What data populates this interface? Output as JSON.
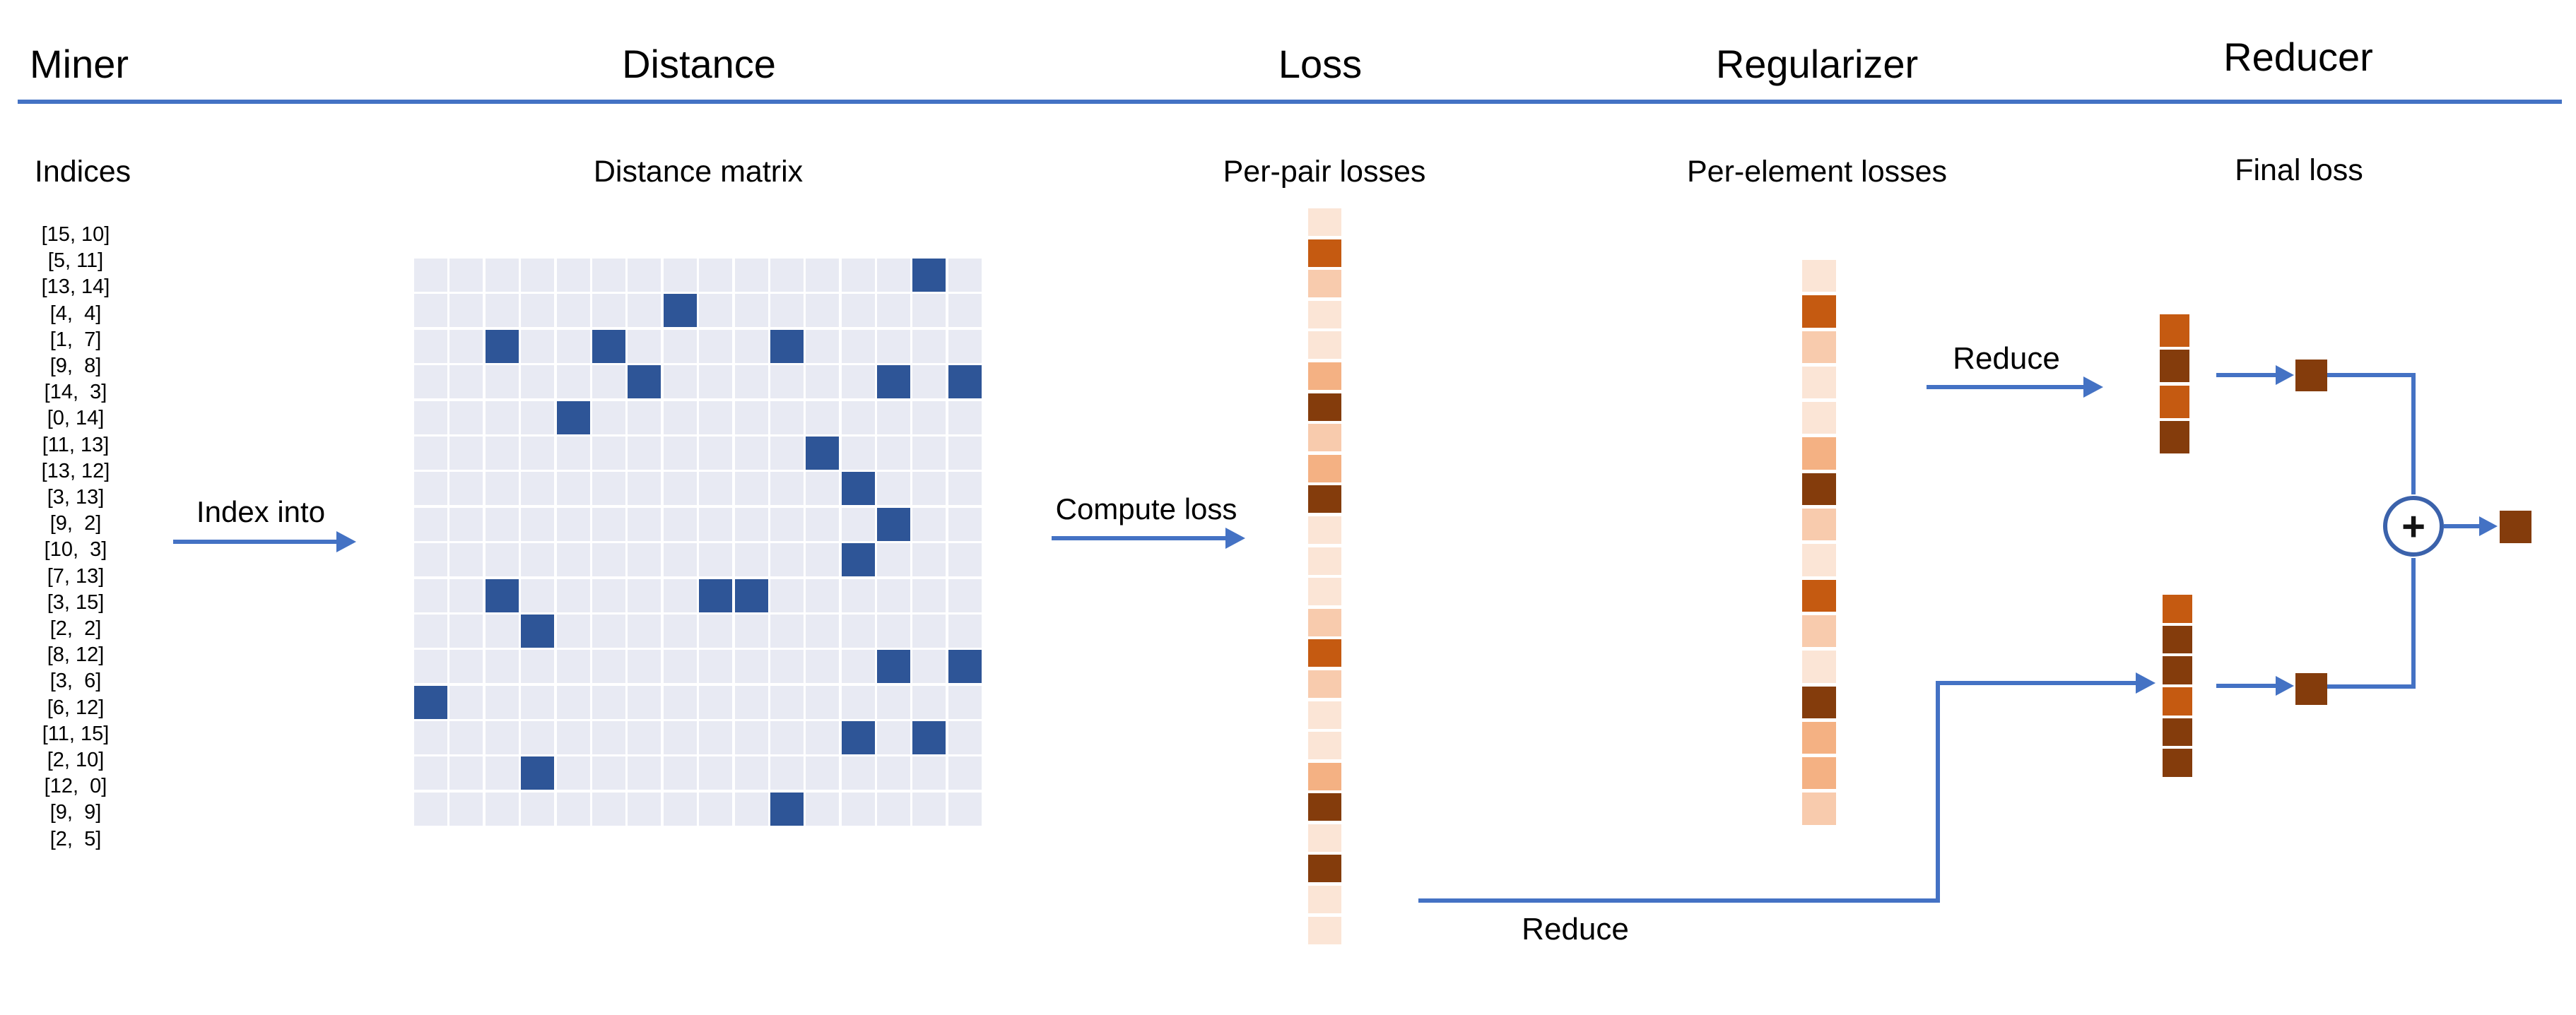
{
  "diagram": {
    "headers": {
      "miner": "Miner",
      "distance": "Distance",
      "loss": "Loss",
      "regularizer": "Regularizer",
      "reducer": "Reducer"
    },
    "subtitles": {
      "indices": "Indices",
      "distance_matrix": "Distance matrix",
      "per_pair": "Per-pair losses",
      "per_element": "Per-element losses",
      "final_loss": "Final loss"
    },
    "labels": {
      "index_into": "Index into",
      "compute_loss": "Compute loss",
      "reduce_top": "Reduce",
      "reduce_bottom": "Reduce",
      "plus": "+"
    }
  },
  "miner": {
    "indices": [
      "[15, 10]",
      "[5, 11]",
      "[13, 14]",
      "[4,  4]",
      "[1,  7]",
      "[9,  8]",
      "[14,  3]",
      "[0, 14]",
      "[11, 13]",
      "[13, 12]",
      "[3, 13]",
      "[9,  2]",
      "[10,  3]",
      "[7, 13]",
      "[3, 15]",
      "[2,  2]",
      "[8, 12]",
      "[3,  6]",
      "[6, 12]",
      "[11, 15]",
      "[2, 10]",
      "[12,  0]",
      "[9,  9]",
      "[2,  5]"
    ]
  },
  "distance": {
    "matrix_size": 16,
    "highlighted_cells": [
      [
        15,
        10
      ],
      [
        5,
        11
      ],
      [
        13,
        14
      ],
      [
        4,
        4
      ],
      [
        1,
        7
      ],
      [
        9,
        8
      ],
      [
        14,
        3
      ],
      [
        0,
        14
      ],
      [
        11,
        13
      ],
      [
        13,
        12
      ],
      [
        3,
        13
      ],
      [
        9,
        2
      ],
      [
        10,
        3
      ],
      [
        7,
        13
      ],
      [
        3,
        15
      ],
      [
        2,
        2
      ],
      [
        8,
        12
      ],
      [
        3,
        6
      ],
      [
        6,
        12
      ],
      [
        11,
        15
      ],
      [
        2,
        10
      ],
      [
        12,
        0
      ],
      [
        9,
        9
      ],
      [
        2,
        5
      ]
    ]
  },
  "loss": {
    "per_pair_losses": [
      "#FBE5D6",
      "#C55A11",
      "#F8CBAD",
      "#FBE5D6",
      "#FBE5D6",
      "#F4B183",
      "#843C0C",
      "#F8CBAD",
      "#F4B183",
      "#843C0C",
      "#FBE5D6",
      "#FBE5D6",
      "#FBE5D6",
      "#F8CBAD",
      "#C55A11",
      "#F8CBAD",
      "#FBE5D6",
      "#FBE5D6",
      "#F4B183",
      "#843C0C",
      "#FBE5D6",
      "#843C0C",
      "#FBE5D6",
      "#FBE5D6"
    ]
  },
  "regularizer": {
    "per_element_losses": [
      "#FBE5D6",
      "#C55A11",
      "#F8CBAD",
      "#FBE5D6",
      "#FBE5D6",
      "#F4B183",
      "#843C0C",
      "#F8CBAD",
      "#FBE5D6",
      "#C55A11",
      "#F8CBAD",
      "#FBE5D6",
      "#843C0C",
      "#F4B183",
      "#F4B183",
      "#F8CBAD"
    ]
  },
  "reducer": {
    "top_column": [
      "#C55A11",
      "#843C0C",
      "#C55A11",
      "#843C0C"
    ],
    "bottom_column": [
      "#C55A11",
      "#843C0C",
      "#843C0C",
      "#C55A11",
      "#843C0C",
      "#843C0C"
    ],
    "top_reduced_cell": "#843C0C",
    "bottom_reduced_cell": "#843C0C",
    "final_cell": "#843C0C"
  },
  "colors": {
    "arrow_blue": "#4472C4",
    "header_rule": "#4472C4",
    "circle_border": "#3B62AB",
    "matrix_cell": "#E8EAF3",
    "matrix_highlight": "#2E5597"
  }
}
